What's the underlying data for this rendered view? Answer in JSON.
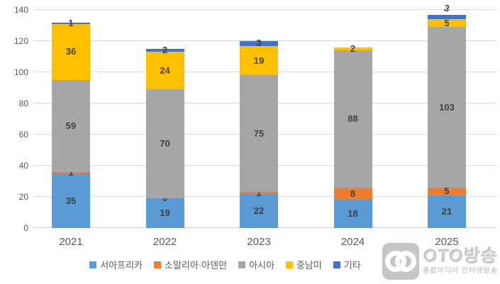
{
  "chart_data": {
    "type": "bar",
    "stacked": true,
    "title": "",
    "categories": [
      "2021",
      "2022",
      "2023",
      "2024",
      "2025"
    ],
    "series": [
      {
        "name": "서아프리카",
        "color": "#5B9BD5",
        "values": [
          35,
          19,
          22,
          18,
          21
        ],
        "labels": [
          "35",
          "19",
          "22",
          "18",
          "21"
        ]
      },
      {
        "name": "소말리아·아덴만",
        "color": "#ED7D31",
        "values": [
          1,
          0,
          1,
          8,
          5
        ],
        "labels": [
          "1",
          "0",
          "1",
          "8",
          "5"
        ]
      },
      {
        "name": "아시아",
        "color": "#A6A6A6",
        "values": [
          59,
          70,
          75,
          88,
          103
        ],
        "labels": [
          "59",
          "70",
          "75",
          "88",
          "103"
        ]
      },
      {
        "name": "중남미",
        "color": "#FFC000",
        "values": [
          36,
          24,
          19,
          2,
          5
        ],
        "labels": [
          "36",
          "24",
          "19",
          "2",
          "5"
        ]
      },
      {
        "name": "기타",
        "color": "#4472C4",
        "values": [
          1,
          2,
          3,
          0,
          3
        ],
        "labels": [
          "1",
          "2",
          "3",
          "",
          "3"
        ]
      }
    ],
    "ylim": [
      0,
      140
    ],
    "yticks": [
      0,
      20,
      40,
      60,
      80,
      100,
      120,
      140
    ],
    "grid": "horizontal",
    "legend_position": "bottom",
    "outside_labels": [
      {
        "category": "2025",
        "series": "기타"
      }
    ]
  },
  "watermark": {
    "icon": "double-ring-logo",
    "title": "OTO방송",
    "subtitle": "종합미디어 인터넷방송"
  }
}
